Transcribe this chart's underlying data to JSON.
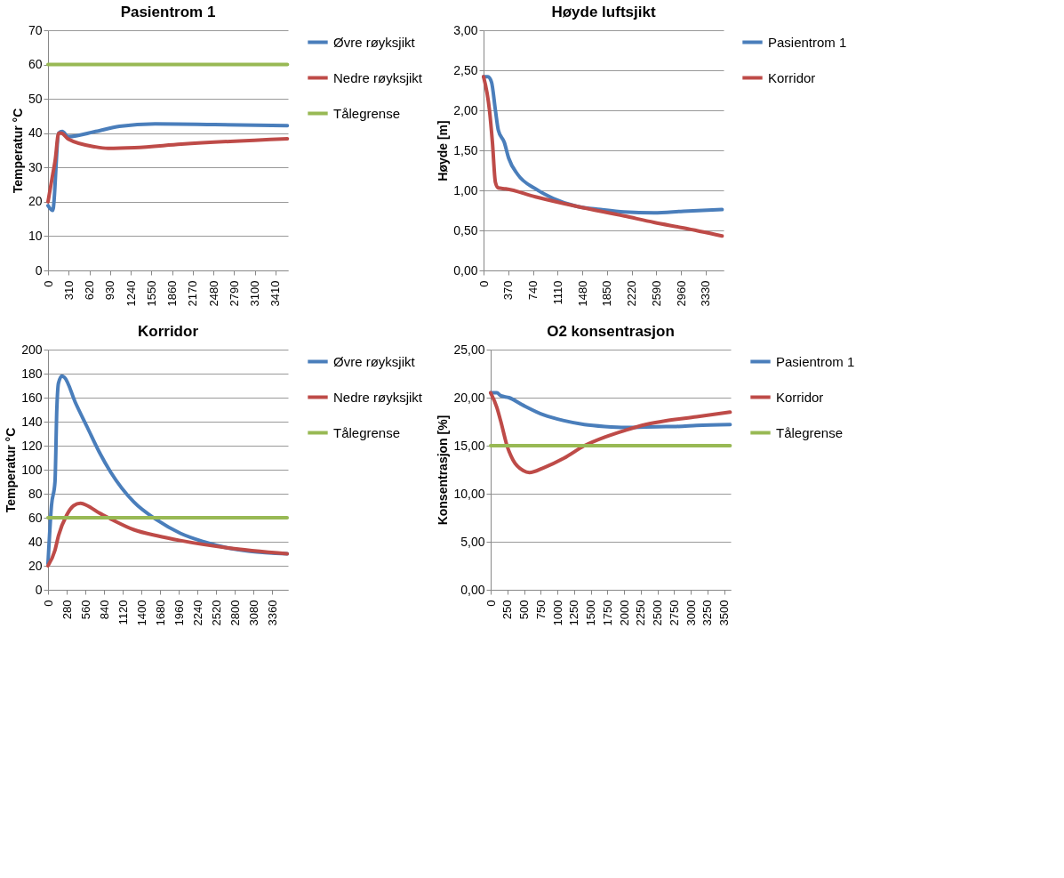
{
  "chart_data": [
    {
      "type": "line",
      "title": "Pasientrom 1",
      "ylabel": "Temperatur °C",
      "xlim": [
        0,
        3600
      ],
      "xticks": [
        0,
        310,
        620,
        930,
        1240,
        1550,
        1860,
        2170,
        2480,
        2790,
        3100,
        3410
      ],
      "ylim": [
        0,
        70
      ],
      "yticks": [
        0,
        10,
        20,
        30,
        40,
        50,
        60,
        70
      ],
      "grid": "y",
      "legend": "right",
      "series": [
        {
          "name": "Øvre røyksjikt",
          "color": "#4a7ebb",
          "x": [
            0,
            71,
            160,
            214,
            303,
            714,
            1071,
            1607,
            2500,
            3590
          ],
          "values": [
            18.9,
            17.5,
            40,
            40.5,
            39,
            40.5,
            42,
            42.7,
            42.5,
            42.2
          ]
        },
        {
          "name": "Nedre røyksjikt",
          "color": "#be4b48",
          "x": [
            0,
            71,
            107,
            160,
            200,
            303,
            714,
            900,
            1300,
            2000,
            3590
          ],
          "values": [
            20,
            28,
            32,
            40,
            40,
            38.3,
            36,
            35.6,
            35.8,
            36.8,
            38.4
          ]
        },
        {
          "name": "Tålegrense",
          "color": "#98b954",
          "x": [
            0,
            3590
          ],
          "values": [
            60,
            60
          ]
        }
      ]
    },
    {
      "type": "line",
      "title": "Høyde luftsjikt",
      "ylabel": "Høyde [m]",
      "xlim": [
        0,
        3600
      ],
      "xticks": [
        0,
        370,
        740,
        1110,
        1480,
        1850,
        2220,
        2590,
        2960,
        3330
      ],
      "ylim": [
        0,
        3
      ],
      "yticks": [
        {
          "value": 0,
          "label": "0,00"
        },
        {
          "value": 0.5,
          "label": "0,50"
        },
        {
          "value": 1,
          "label": "1,00"
        },
        {
          "value": 1.5,
          "label": "1,50"
        },
        {
          "value": 2,
          "label": "2,00"
        },
        {
          "value": 2.5,
          "label": "2,50"
        },
        {
          "value": 3,
          "label": "3,00"
        }
      ],
      "grid": "y",
      "legend": "right",
      "series": [
        {
          "name": "Pasientrom 1",
          "color": "#4a7ebb",
          "x": [
            0,
            67,
            120,
            178,
            222,
            311,
            378,
            511,
            778,
            1044,
            1400,
            1756,
            2111,
            2556,
            3000,
            3578
          ],
          "values": [
            2.42,
            2.42,
            2.35,
            2.0,
            1.75,
            1.6,
            1.4,
            1.2,
            1.02,
            0.9,
            0.8,
            0.76,
            0.73,
            0.72,
            0.74,
            0.76
          ]
        },
        {
          "name": "Korridor",
          "color": "#be4b48",
          "x": [
            0,
            89,
            133,
            178,
            222,
            333,
            778,
            1400,
            2111,
            2556,
            3000,
            3578
          ],
          "values": [
            2.42,
            2.0,
            1.6,
            1.1,
            1.03,
            1.02,
            0.92,
            0.8,
            0.68,
            0.6,
            0.53,
            0.43
          ]
        }
      ]
    },
    {
      "type": "line",
      "title": "Korridor",
      "ylabel": "Temperatur °C",
      "xlim": [
        0,
        3600
      ],
      "xticks": [
        0,
        280,
        560,
        840,
        1120,
        1400,
        1680,
        1960,
        2240,
        2520,
        2800,
        3080,
        3360
      ],
      "ylim": [
        0,
        200
      ],
      "yticks": [
        0,
        20,
        40,
        60,
        80,
        100,
        120,
        140,
        160,
        180,
        200
      ],
      "grid": "y",
      "legend": "right",
      "series": [
        {
          "name": "Øvre røyksjikt",
          "color": "#4a7ebb",
          "x": [
            0,
            52,
            105,
            132,
            157,
            209,
            244,
            418,
            592,
            766,
            940,
            1289,
            1637,
            1985,
            2334,
            2682,
            3030,
            3587
          ],
          "values": [
            22,
            70,
            90,
            150,
            172,
            178,
            177,
            155,
            135,
            115,
            98,
            73,
            58,
            47,
            40,
            35,
            32,
            30
          ]
        },
        {
          "name": "Nedre røyksjikt",
          "color": "#be4b48",
          "x": [
            0,
            105,
            157,
            279,
            383,
            488,
            592,
            766,
            940,
            1289,
            1637,
            1985,
            2682,
            3587
          ],
          "values": [
            20,
            33,
            45,
            62,
            70,
            72,
            70,
            64,
            59,
            50,
            45,
            41,
            35,
            30
          ]
        },
        {
          "name": "Tålegrense",
          "color": "#98b954",
          "x": [
            0,
            3587
          ],
          "values": [
            60,
            60
          ]
        }
      ]
    },
    {
      "type": "line",
      "title": "O2 konsentrasjon",
      "ylabel": "Konsentrasjon [%]",
      "xlim": [
        0,
        3600
      ],
      "xticks": [
        0,
        250,
        500,
        750,
        1000,
        1250,
        1500,
        1750,
        2000,
        2250,
        2500,
        2750,
        3000,
        3250,
        3500
      ],
      "ylim": [
        0,
        25
      ],
      "yticks": [
        {
          "value": 0,
          "label": "0,00"
        },
        {
          "value": 5,
          "label": "5,00"
        },
        {
          "value": 10,
          "label": "10,00"
        },
        {
          "value": 15,
          "label": "15,00"
        },
        {
          "value": 20,
          "label": "20,00"
        },
        {
          "value": 25,
          "label": "25,00"
        }
      ],
      "grid": "y",
      "legend": "right",
      "series": [
        {
          "name": "Pasientrom 1",
          "color": "#4a7ebb",
          "x": [
            0,
            92,
            153,
            275,
            489,
            795,
            1100,
            1406,
            1712,
            2018,
            2629,
            2782,
            3088,
            3592
          ],
          "values": [
            20.5,
            20.5,
            20.2,
            20.0,
            19.2,
            18.2,
            17.6,
            17.2,
            17.0,
            16.9,
            17.0,
            17.0,
            17.1,
            17.2
          ]
        },
        {
          "name": "Korridor",
          "color": "#be4b48",
          "x": [
            0,
            92,
            153,
            245,
            336,
            489,
            581,
            795,
            1100,
            1406,
            1712,
            2018,
            2323,
            2629,
            3088,
            3592
          ],
          "values": [
            20.5,
            19.0,
            17.5,
            15.0,
            13.5,
            12.4,
            12.2,
            12.7,
            13.7,
            15.0,
            15.9,
            16.6,
            17.2,
            17.6,
            18.0,
            18.5
          ]
        },
        {
          "name": "Tålegrense",
          "color": "#98b954",
          "x": [
            0,
            3592
          ],
          "values": [
            15,
            15
          ]
        }
      ]
    }
  ]
}
